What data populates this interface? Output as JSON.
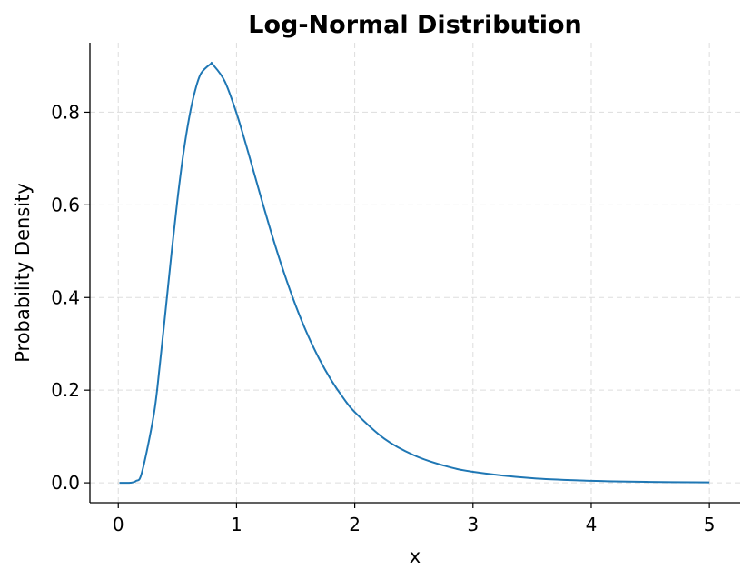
{
  "chart_data": {
    "type": "line",
    "title": "Log-Normal Distribution",
    "xlabel": "x",
    "ylabel": "Probability Density",
    "xlim": [
      -0.24,
      5.26
    ],
    "ylim": [
      -0.043,
      0.95
    ],
    "xticks": [
      0,
      1,
      2,
      3,
      4,
      5
    ],
    "xtick_labels": [
      "0",
      "1",
      "2",
      "3",
      "4",
      "5"
    ],
    "yticks": [
      0.0,
      0.2,
      0.4,
      0.6,
      0.8
    ],
    "ytick_labels": [
      "0.0",
      "0.2",
      "0.4",
      "0.6",
      "0.8"
    ],
    "grid": true,
    "grid_style": "dashed",
    "line_color": "#1f77b4",
    "series": [
      {
        "x": [
          0.01,
          0.1,
          0.15,
          0.2,
          0.3,
          0.35,
          0.4,
          0.45,
          0.5,
          0.55,
          0.6,
          0.65,
          0.7,
          0.78,
          0.8,
          0.9,
          1.0,
          1.1,
          1.2,
          1.3,
          1.4,
          1.5,
          1.6,
          1.7,
          1.8,
          1.9,
          2.0,
          2.25,
          2.5,
          2.75,
          3.0,
          3.5,
          4.0,
          4.5,
          5.0
        ],
        "y": [
          0.0,
          0.0002,
          0.004,
          0.0225,
          0.1465,
          0.2514,
          0.372,
          0.4954,
          0.6104,
          0.7098,
          0.789,
          0.8469,
          0.8839,
          0.904,
          0.9028,
          0.867,
          0.7979,
          0.7123,
          0.6222,
          0.5349,
          0.4545,
          0.3829,
          0.3206,
          0.2673,
          0.2221,
          0.1843,
          0.1526,
          0.0952,
          0.0595,
          0.0375,
          0.0238,
          0.0099,
          0.0043,
          0.0019,
          0.0009
        ]
      }
    ]
  }
}
